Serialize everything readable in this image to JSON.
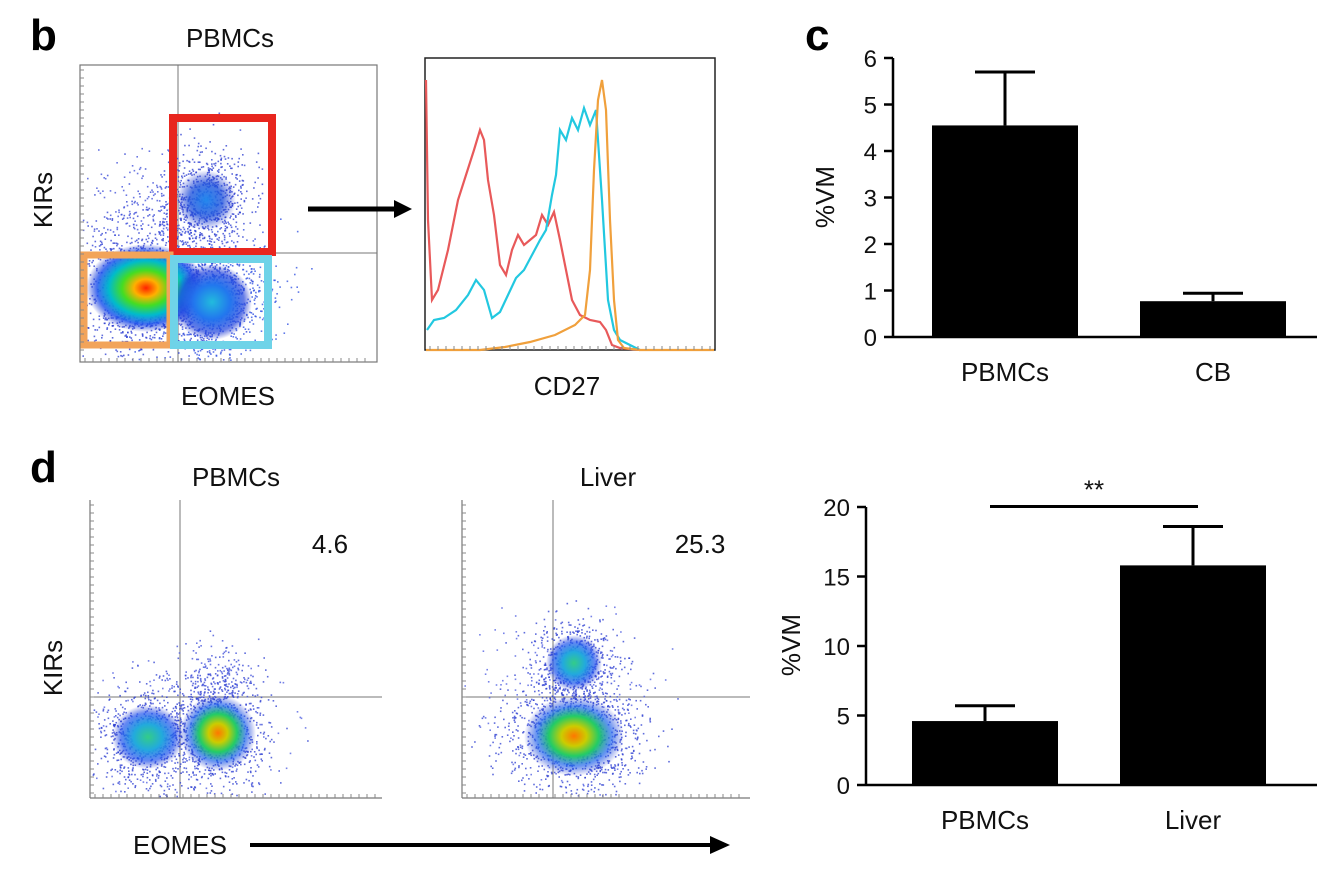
{
  "panels": {
    "b": {
      "letter": "b",
      "dot_plot": {
        "title": "PBMCs",
        "xlabel": "EOMES",
        "ylabel": "KIRs",
        "gate_colors": {
          "red": "#e8261e",
          "orange": "#f2a45a",
          "cyan": "#6fd3e8"
        }
      },
      "histogram": {
        "xlabel": "CD27",
        "series_colors": {
          "red": "#e8595a",
          "cyan": "#22c8e0",
          "orange": "#f0a03c"
        }
      }
    },
    "c": {
      "letter": "c"
    },
    "d": {
      "letter": "d",
      "plot_pbmcs": {
        "title": "PBMCs",
        "ylabel": "KIRs",
        "value": "4.6"
      },
      "plot_liver": {
        "title": "Liver",
        "value": "25.3"
      },
      "xlabel": "EOMES",
      "significance": "**"
    }
  },
  "chart_data": [
    {
      "id": "panel-c",
      "type": "bar",
      "categories": [
        "PBMCs",
        "CB"
      ],
      "values": [
        4.55,
        0.77
      ],
      "errors": [
        1.15,
        0.17
      ],
      "ylabel": "%VM",
      "ylim": [
        0,
        6
      ],
      "yticks": [
        0,
        1,
        2,
        3,
        4,
        5,
        6
      ],
      "bar_color": "#000000"
    },
    {
      "id": "panel-d",
      "type": "bar",
      "categories": [
        "PBMCs",
        "Liver"
      ],
      "values": [
        4.6,
        15.8
      ],
      "errors": [
        1.1,
        2.8
      ],
      "ylabel": "%VM",
      "ylim": [
        0,
        20
      ],
      "yticks": [
        0,
        5,
        10,
        15,
        20
      ],
      "bar_color": "#000000"
    }
  ]
}
